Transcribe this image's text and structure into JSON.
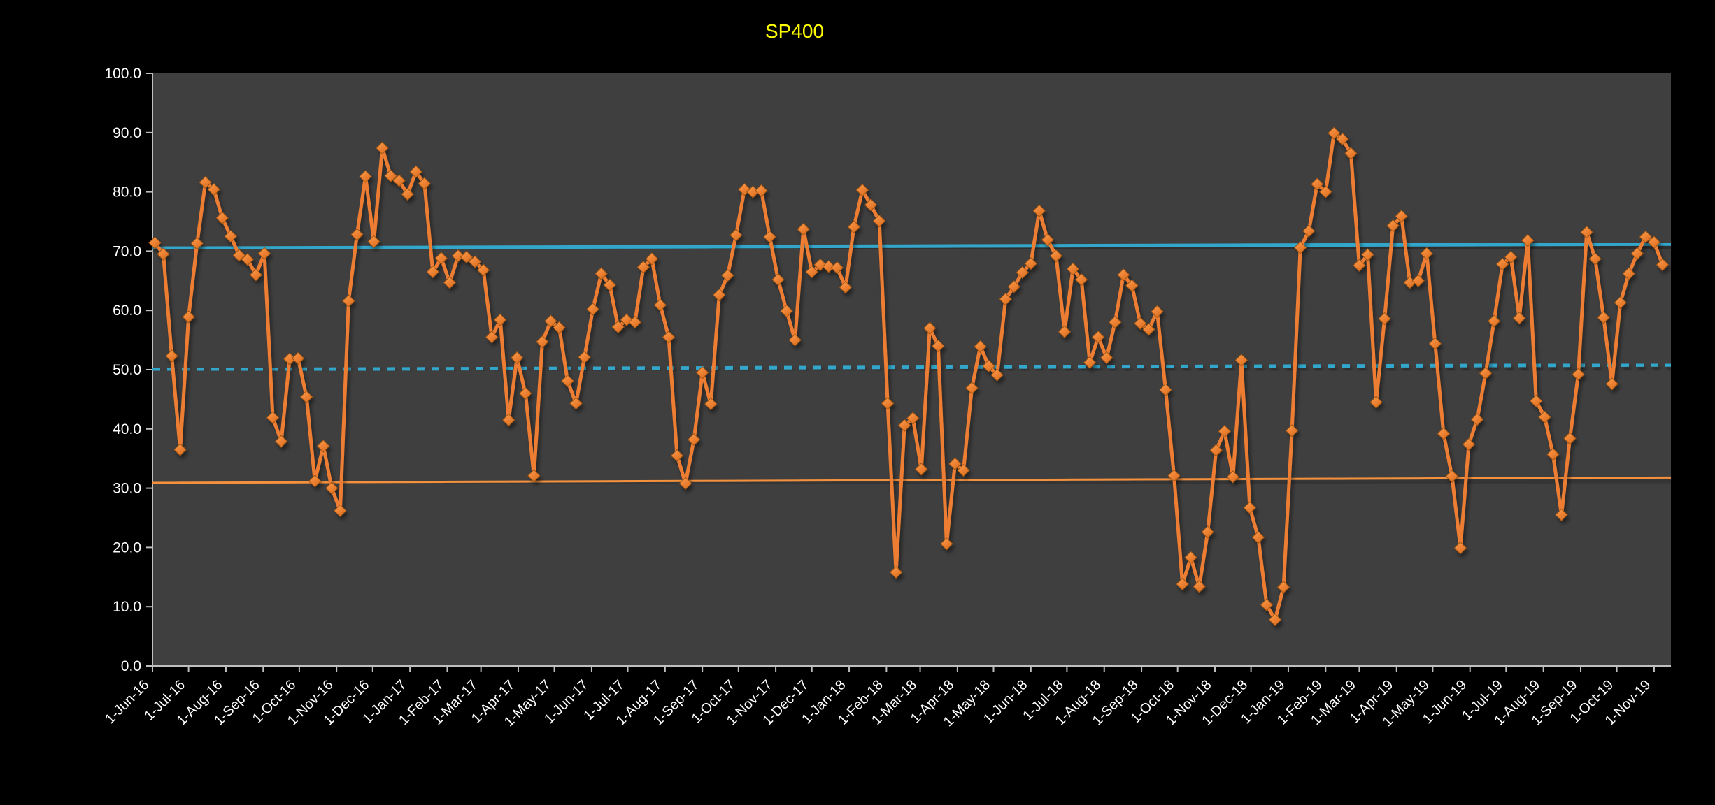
{
  "chart_data": {
    "type": "line",
    "title": "SP400",
    "title_color": "#FFFF00",
    "background": "#000000",
    "plot_background": "#3F3F3F",
    "grid": "off",
    "legend": "none",
    "y_axis": {
      "min": 0,
      "max": 100,
      "step": 10,
      "tick_labels": [
        "0.0",
        "10.0",
        "20.0",
        "30.0",
        "40.0",
        "50.0",
        "60.0",
        "70.0",
        "80.0",
        "90.0",
        "100.0"
      ],
      "label_color": "#FFFFFF",
      "axis_color": "#BFBFBF"
    },
    "x_axis": {
      "tick_labels": [
        "1-Jun-16",
        "1-Jul-16",
        "1-Aug-16",
        "1-Sep-16",
        "1-Oct-16",
        "1-Nov-16",
        "1-Dec-16",
        "1-Jan-17",
        "1-Feb-17",
        "1-Mar-17",
        "1-Apr-17",
        "1-May-17",
        "1-Jun-17",
        "1-Jul-17",
        "1-Aug-17",
        "1-Sep-17",
        "1-Oct-17",
        "1-Nov-17",
        "1-Dec-17",
        "1-Jan-18",
        "1-Feb-18",
        "1-Mar-18",
        "1-Apr-18",
        "1-May-18",
        "1-Jun-18",
        "1-Jul-18",
        "1-Aug-18",
        "1-Sep-18",
        "1-Oct-18",
        "1-Nov-18",
        "1-Dec-18",
        "1-Jan-19",
        "1-Feb-19",
        "1-Mar-19",
        "1-Apr-19",
        "1-May-19",
        "1-Jun-19",
        "1-Jul-19",
        "1-Aug-19",
        "1-Sep-19",
        "1-Oct-19",
        "1-Nov-19"
      ],
      "tick_dates": [
        "2016-06-01",
        "2016-07-01",
        "2016-08-01",
        "2016-09-01",
        "2016-10-01",
        "2016-11-01",
        "2016-12-01",
        "2017-01-01",
        "2017-02-01",
        "2017-03-01",
        "2017-04-01",
        "2017-05-01",
        "2017-06-01",
        "2017-07-01",
        "2017-08-01",
        "2017-09-01",
        "2017-10-01",
        "2017-11-01",
        "2017-12-01",
        "2018-01-01",
        "2018-02-01",
        "2018-03-01",
        "2018-04-01",
        "2018-05-01",
        "2018-06-01",
        "2018-07-01",
        "2018-08-01",
        "2018-09-01",
        "2018-10-01",
        "2018-11-01",
        "2018-12-01",
        "2019-01-01",
        "2019-02-01",
        "2019-03-01",
        "2019-04-01",
        "2019-05-01",
        "2019-06-01",
        "2019-07-01",
        "2019-08-01",
        "2019-09-01",
        "2019-10-01",
        "2019-11-01"
      ],
      "range_start": "2016-06-01",
      "range_end": "2019-11-15",
      "label_color": "#FFFFFF",
      "axis_color": "#BFBFBF"
    },
    "series": {
      "name": "SP400",
      "color": "#ED7D31",
      "marker": "diamond",
      "marker_fill_light": "#F9A24C",
      "marker_fill_dark": "#D86F1F",
      "marker_edge": "#9C5312",
      "start_date": "2016-06-03",
      "interval_days": 7,
      "values": [
        71.4,
        69.5,
        52.3,
        36.5,
        58.9,
        71.3,
        81.6,
        80.4,
        75.6,
        72.5,
        69.3,
        68.6,
        66.0,
        69.6,
        41.9,
        37.9,
        51.8,
        51.9,
        45.4,
        31.2,
        37.1,
        30.0,
        26.2,
        61.6,
        72.8,
        82.6,
        71.6,
        87.4,
        82.7,
        81.9,
        79.6,
        83.4,
        81.4,
        66.5,
        68.8,
        64.7,
        69.2,
        69.0,
        68.2,
        66.8,
        55.5,
        58.4,
        41.5,
        52.0,
        46.0,
        32.1,
        54.7,
        58.2,
        57.1,
        48.1,
        44.3,
        52.1,
        60.2,
        66.2,
        64.3,
        57.2,
        58.4,
        58.0,
        67.3,
        68.7,
        60.9,
        55.5,
        35.5,
        30.8,
        38.2,
        49.5,
        44.2,
        62.6,
        65.9,
        72.7,
        80.4,
        80.0,
        80.2,
        72.4,
        65.2,
        59.9,
        55.0,
        73.7,
        66.5,
        67.7,
        67.4,
        67.2,
        63.9,
        74.1,
        80.3,
        77.8,
        75.1,
        44.3,
        15.8,
        40.6,
        41.8,
        33.2,
        57.0,
        54.0,
        20.6,
        34.1,
        33.0,
        46.9,
        53.9,
        50.6,
        49.1,
        61.9,
        64.0,
        66.4,
        67.9,
        76.8,
        71.9,
        69.2,
        56.4,
        67.0,
        65.2,
        51.2,
        55.5,
        52.0,
        58.0,
        66.0,
        64.2,
        57.8,
        56.8,
        59.8,
        46.6,
        32.1,
        13.8,
        18.3,
        13.4,
        22.6,
        36.4,
        39.6,
        31.9,
        51.6,
        26.7,
        21.7,
        10.3,
        7.8,
        13.3,
        39.7,
        70.6,
        73.4,
        81.3,
        80.0,
        89.9,
        88.9,
        86.5,
        67.6,
        69.4,
        44.5,
        58.6,
        74.3,
        75.9,
        64.7,
        65.0,
        69.6,
        54.4,
        39.2,
        32.0,
        19.9,
        37.4,
        41.6,
        49.4,
        58.2,
        67.8,
        69.0,
        58.7,
        71.8,
        44.7,
        42.0,
        35.7,
        25.5,
        38.4,
        49.2,
        73.2,
        68.7,
        58.8,
        47.6,
        61.3,
        66.2,
        69.6,
        72.4,
        71.5,
        67.7
      ]
    },
    "ref_lines": [
      {
        "name": "upper_limit",
        "style": "solid",
        "color": "#31A7CB",
        "start_value": 70.5,
        "end_value": 71.2,
        "width": 5
      },
      {
        "name": "center_line",
        "style": "dotted",
        "color": "#31A7CB",
        "start_value": 50.0,
        "end_value": 50.8,
        "width": 5
      },
      {
        "name": "lower_limit",
        "style": "solid",
        "color": "#F5913E",
        "start_value": 30.9,
        "end_value": 31.8,
        "width": 3
      }
    ]
  }
}
